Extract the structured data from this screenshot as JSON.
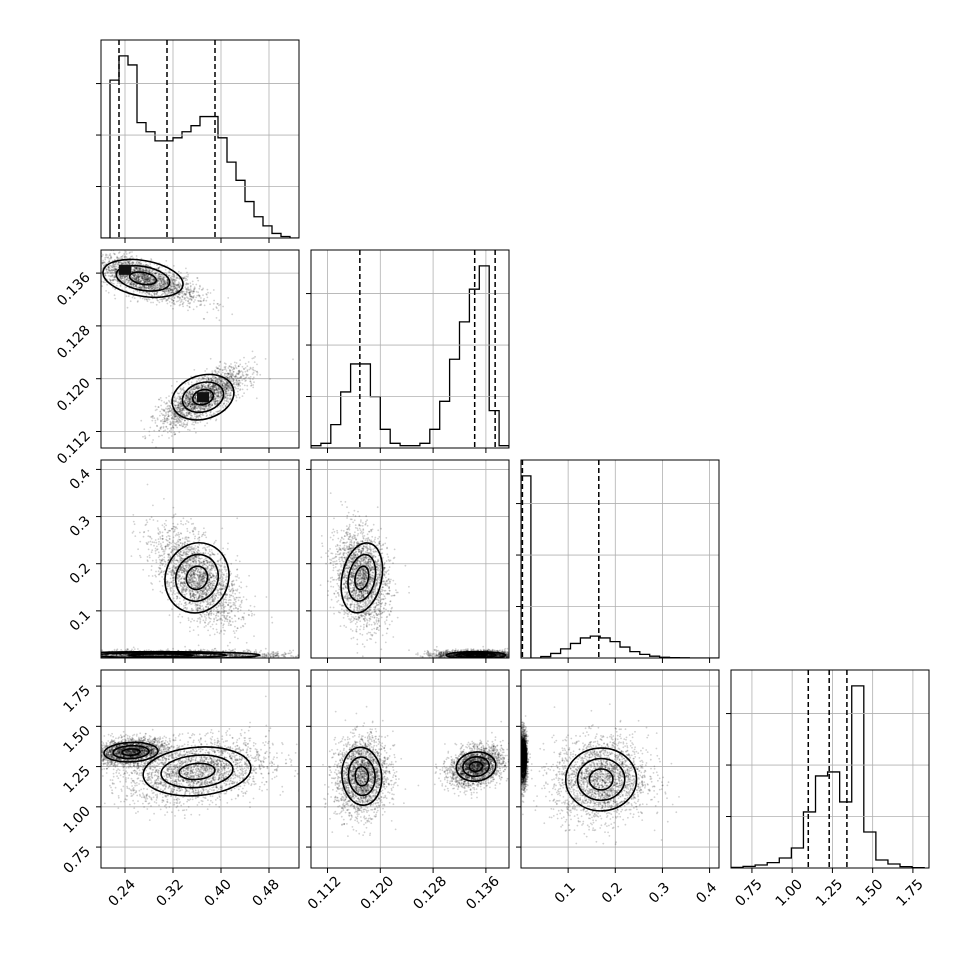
{
  "chart_data": {
    "type": "corner",
    "parameters": [
      {
        "ticks": [
          0.24,
          0.32,
          0.4,
          0.48
        ],
        "tick_labels": [
          "0.24",
          "0.32",
          "0.40",
          "0.48"
        ],
        "range": [
          0.2,
          0.53
        ],
        "quantiles": [
          0.23,
          0.31,
          0.39
        ]
      },
      {
        "ticks": [
          0.112,
          0.12,
          0.128,
          0.136
        ],
        "tick_labels": [
          "0.112",
          "0.120",
          "0.128",
          "0.136"
        ],
        "range": [
          0.1095,
          0.1395
        ],
        "quantiles": [
          0.1169,
          0.1343,
          0.1374
        ]
      },
      {
        "ticks": [
          0.1,
          0.2,
          0.3,
          0.4
        ],
        "tick_labels": [
          "0.1",
          "0.2",
          "0.3",
          "0.4"
        ],
        "range": [
          0.0,
          0.42
        ],
        "quantiles": [
          0.003,
          0.165
        ]
      },
      {
        "ticks": [
          0.75,
          1.0,
          1.25,
          1.5,
          1.75
        ],
        "tick_labels": [
          "0.75",
          "1.00",
          "1.25",
          "1.50",
          "1.75"
        ],
        "range": [
          0.62,
          1.85
        ],
        "quantiles": [
          1.1,
          1.23,
          1.34
        ]
      }
    ],
    "histograms": [
      {
        "bins": [
          0.2,
          0.215,
          0.23,
          0.245,
          0.26,
          0.275,
          0.29,
          0.305,
          0.32,
          0.335,
          0.35,
          0.365,
          0.38,
          0.395,
          0.41,
          0.425,
          0.44,
          0.455,
          0.47,
          0.485,
          0.5,
          0.515,
          0.53
        ],
        "counts": [
          0,
          52,
          60,
          57,
          38,
          35,
          32,
          32,
          33,
          35,
          37,
          40,
          40,
          33,
          25,
          19,
          12,
          7,
          4,
          1.5,
          0.5,
          0
        ]
      },
      {
        "bins": [
          0.1095,
          0.111,
          0.1125,
          0.114,
          0.1155,
          0.117,
          0.1185,
          0.12,
          0.1215,
          0.123,
          0.1245,
          0.126,
          0.1275,
          0.129,
          0.1305,
          0.132,
          0.1335,
          0.135,
          0.1365,
          0.138,
          0.1395
        ],
        "counts": [
          0.5,
          1,
          5,
          12,
          18,
          18,
          11,
          4,
          1,
          0.5,
          0.5,
          1,
          4,
          10,
          19,
          27,
          34,
          39,
          8,
          0.5
        ]
      },
      {
        "bins": [
          0.0,
          0.021,
          0.042,
          0.063,
          0.084,
          0.105,
          0.126,
          0.147,
          0.168,
          0.189,
          0.21,
          0.231,
          0.252,
          0.273,
          0.294,
          0.315,
          0.336,
          0.357,
          0.378,
          0.399,
          0.42
        ],
        "counts": [
          100,
          0,
          0.8,
          2.5,
          5,
          8,
          11,
          12,
          11,
          9,
          6,
          3.5,
          2,
          1,
          0.4,
          0.2,
          0.1,
          0,
          0,
          0
        ]
      },
      {
        "bins": [
          0.62,
          0.695,
          0.77,
          0.845,
          0.92,
          0.995,
          1.07,
          1.145,
          1.22,
          1.295,
          1.37,
          1.445,
          1.52,
          1.595,
          1.67,
          1.745,
          1.82
        ],
        "counts": [
          0.3,
          0.8,
          1.5,
          2.7,
          5,
          10,
          28,
          46,
          48,
          33,
          91,
          18,
          4,
          2,
          0.7,
          0.2
        ]
      }
    ],
    "scatter_pairs": [
      {
        "row": 1,
        "col": 0,
        "clusters": [
          {
            "center": [
              0.27,
              0.1352
            ],
            "spread": [
              0.045,
              0.0018
            ],
            "corr": -0.7,
            "contours": [
              [
                0.215,
                0.1365
              ],
              [
                0.245,
                0.1325
              ],
              [
                0.33,
                0.1305
              ]
            ],
            "density_peak": [
              0.24,
              0.1365
            ]
          },
          {
            "center": [
              0.37,
              0.1172
            ],
            "spread": [
              0.035,
              0.0022
            ],
            "corr": 0.75,
            "contours": [
              [
                0.37,
                0.1172
              ]
            ],
            "density_peak": [
              0.37,
              0.1172
            ]
          }
        ]
      },
      {
        "row": 2,
        "col": 0,
        "clusters": [
          {
            "center": [
              0.36,
              0.17
            ],
            "spread": [
              0.035,
              0.05
            ],
            "corr": -0.55
          },
          {
            "center": [
              0.3,
              0.006
            ],
            "spread": [
              0.11,
              0.005
            ],
            "corr": 0.0
          }
        ]
      },
      {
        "row": 2,
        "col": 1,
        "clusters": [
          {
            "center": [
              0.1172,
              0.17
            ],
            "spread": [
              0.002,
              0.05
            ],
            "corr": -0.2
          },
          {
            "center": [
              0.1345,
              0.006
            ],
            "spread": [
              0.003,
              0.005
            ],
            "corr": 0.0
          }
        ]
      },
      {
        "row": 3,
        "col": 0,
        "clusters": [
          {
            "center": [
              0.25,
              1.34
            ],
            "spread": [
              0.03,
              0.04
            ],
            "corr": 0.2
          },
          {
            "center": [
              0.36,
              1.22
            ],
            "spread": [
              0.06,
              0.1
            ],
            "corr": 0.3
          }
        ]
      },
      {
        "row": 3,
        "col": 1,
        "clusters": [
          {
            "center": [
              0.1172,
              1.19
            ],
            "spread": [
              0.002,
              0.12
            ],
            "corr": 0.1
          },
          {
            "center": [
              0.1345,
              1.25
            ],
            "spread": [
              0.002,
              0.06
            ],
            "corr": 0.3
          }
        ]
      },
      {
        "row": 3,
        "col": 2,
        "clusters": [
          {
            "center": [
              0.17,
              1.17
            ],
            "spread": [
              0.05,
              0.13
            ],
            "corr": 0.05
          },
          {
            "center": [
              0.005,
              1.3
            ],
            "spread": [
              0.004,
              0.08
            ],
            "corr": 0.0
          }
        ]
      }
    ]
  }
}
